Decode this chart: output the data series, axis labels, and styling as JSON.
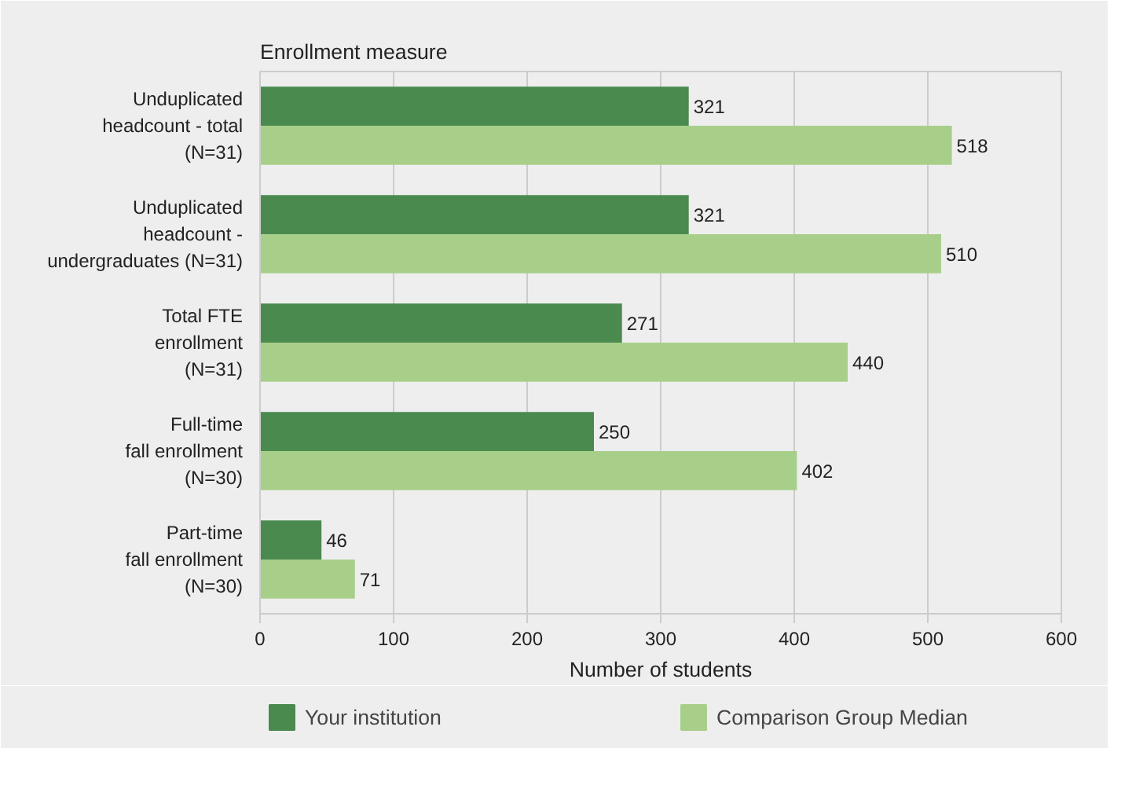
{
  "chart_data": {
    "type": "bar",
    "orientation": "horizontal",
    "ylabel": "Enrollment measure",
    "xlabel": "Number of students",
    "categories": [
      "Unduplicated\nheadcount - total\n(N=31)",
      "Unduplicated\nheadcount -\nundergraduates (N=31)",
      "Total FTE\nenrollment\n(N=31)",
      "Full-time\nfall enrollment\n(N=30)",
      "Part-time\nfall enrollment\n(N=30)"
    ],
    "series": [
      {
        "name": "Your institution",
        "color": "#4a8a4f",
        "values": [
          321,
          321,
          271,
          250,
          46
        ]
      },
      {
        "name": "Comparison Group Median",
        "color": "#a8cf8a",
        "values": [
          518,
          510,
          440,
          402,
          71
        ]
      }
    ],
    "xlim": [
      0,
      600
    ],
    "xticks": [
      0,
      100,
      200,
      300,
      400,
      500,
      600
    ],
    "grid": "x",
    "data_labels": true,
    "legend": "bottom"
  }
}
